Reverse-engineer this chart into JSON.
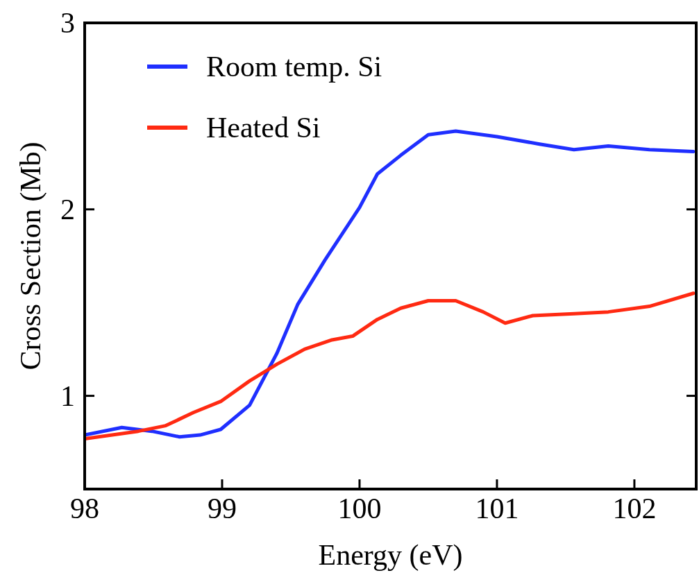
{
  "chart_data": {
    "type": "line",
    "xlabel": "Energy (eV)",
    "ylabel": "Cross Section (Mb)",
    "xlim": [
      98,
      102.45
    ],
    "xticks": [
      98,
      99,
      100,
      101,
      102
    ],
    "ylim": [
      0.5,
      3
    ],
    "yticks": [
      1,
      2,
      3
    ],
    "grid": false,
    "legend": "top left",
    "line_style": "solid",
    "series": [
      {
        "name": "Room temp. Si",
        "color": "#1f2fff",
        "x": [
          98,
          98.27,
          98.49,
          98.69,
          98.84,
          98.99,
          99.2,
          99.4,
          99.55,
          99.75,
          100,
          100.13,
          100.3,
          100.5,
          100.7,
          101,
          101.31,
          101.56,
          101.81,
          102.11,
          102.43
        ],
        "values": [
          0.79,
          0.83,
          0.81,
          0.78,
          0.79,
          0.82,
          0.95,
          1.23,
          1.49,
          1.73,
          2.01,
          2.19,
          2.29,
          2.4,
          2.42,
          2.39,
          2.35,
          2.32,
          2.34,
          2.32,
          2.31
        ]
      },
      {
        "name": "Heated Si",
        "color": "#ff2a12",
        "x": [
          98,
          98.39,
          98.59,
          98.79,
          98.99,
          99.2,
          99.4,
          99.6,
          99.8,
          99.95,
          100.13,
          100.3,
          100.5,
          100.7,
          100.9,
          101.06,
          101.26,
          101.56,
          101.81,
          102.11,
          102.43
        ],
        "values": [
          0.77,
          0.81,
          0.84,
          0.91,
          0.97,
          1.08,
          1.17,
          1.25,
          1.3,
          1.32,
          1.41,
          1.47,
          1.51,
          1.51,
          1.45,
          1.39,
          1.43,
          1.44,
          1.45,
          1.48,
          1.55
        ]
      }
    ]
  }
}
